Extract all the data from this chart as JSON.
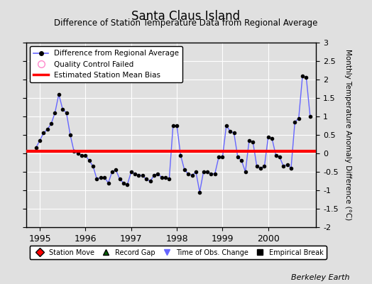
{
  "title": "Santa Claus Island",
  "subtitle": "Difference of Station Temperature Data from Regional Average",
  "ylabel": "Monthly Temperature Anomaly Difference (°C)",
  "bias_value": 0.05,
  "ylim": [
    -2,
    3
  ],
  "yticks": [
    -2,
    -1.5,
    -1,
    -0.5,
    0,
    0.5,
    1,
    1.5,
    2,
    2.5,
    3
  ],
  "xlim": [
    1994.7,
    2001.05
  ],
  "xticks": [
    1995,
    1996,
    1997,
    1998,
    1999,
    2000
  ],
  "background_color": "#e0e0e0",
  "plot_bg_color": "#e0e0e0",
  "line_color": "#6666ff",
  "marker_color": "#000000",
  "bias_line_color": "#ff0000",
  "berkeley_earth_text": "Berkeley Earth",
  "time_x": [
    1994.917,
    1995.0,
    1995.083,
    1995.167,
    1995.25,
    1995.333,
    1995.417,
    1995.5,
    1995.583,
    1995.667,
    1995.75,
    1995.833,
    1995.917,
    1996.0,
    1996.083,
    1996.167,
    1996.25,
    1996.333,
    1996.417,
    1996.5,
    1996.583,
    1996.667,
    1996.75,
    1996.833,
    1996.917,
    1997.0,
    1997.083,
    1997.167,
    1997.25,
    1997.333,
    1997.417,
    1997.5,
    1997.583,
    1997.667,
    1997.75,
    1997.833,
    1997.917,
    1998.0,
    1998.083,
    1998.167,
    1998.25,
    1998.333,
    1998.417,
    1998.5,
    1998.583,
    1998.667,
    1998.75,
    1998.833,
    1998.917,
    1999.0,
    1999.083,
    1999.167,
    1999.25,
    1999.333,
    1999.417,
    1999.5,
    1999.583,
    1999.667,
    1999.75,
    1999.833,
    1999.917,
    2000.0,
    2000.083,
    2000.167,
    2000.25,
    2000.333,
    2000.417,
    2000.5,
    2000.583,
    2000.667,
    2000.75,
    2000.833,
    2000.917
  ],
  "time_y": [
    0.15,
    0.35,
    0.55,
    0.65,
    0.8,
    1.1,
    1.6,
    1.2,
    1.1,
    0.5,
    0.05,
    0.0,
    -0.05,
    -0.05,
    -0.2,
    -0.35,
    -0.7,
    -0.65,
    -0.65,
    -0.8,
    -0.5,
    -0.45,
    -0.7,
    -0.8,
    -0.85,
    -0.5,
    -0.55,
    -0.6,
    -0.6,
    -0.7,
    -0.75,
    -0.6,
    -0.55,
    -0.65,
    -0.65,
    -0.7,
    0.75,
    0.75,
    -0.05,
    -0.45,
    -0.55,
    -0.6,
    -0.5,
    -1.05,
    -0.5,
    -0.5,
    -0.55,
    -0.55,
    -0.1,
    -0.1,
    0.75,
    0.6,
    0.55,
    -0.1,
    -0.2,
    -0.5,
    0.35,
    0.3,
    -0.35,
    -0.4,
    -0.35,
    0.45,
    0.4,
    -0.05,
    -0.1,
    -0.35,
    -0.3,
    -0.4,
    0.85,
    0.95,
    2.1,
    2.05,
    1.0
  ]
}
